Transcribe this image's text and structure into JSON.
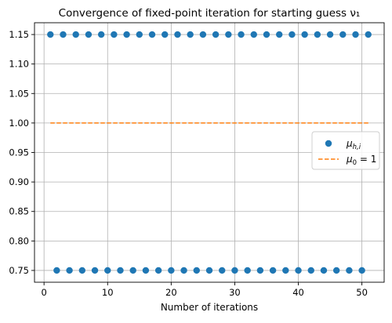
{
  "chart_data": {
    "type": "scatter",
    "title": "Convergence of fixed-point iteration for starting guess ν₁",
    "xlabel": "Number of iterations",
    "ylabel": "",
    "xlim": [
      -1.5,
      53.5
    ],
    "ylim": [
      0.73,
      1.17
    ],
    "xticks": [
      0,
      10,
      20,
      30,
      40,
      50
    ],
    "yticks": [
      0.75,
      0.8,
      0.85,
      0.9,
      0.95,
      1.0,
      1.05,
      1.1,
      1.15
    ],
    "grid": true,
    "legend_position": "center-right",
    "series": [
      {
        "name": "μh,i",
        "kind": "markers",
        "color": "#1f77b4",
        "x": [
          1,
          2,
          3,
          4,
          5,
          6,
          7,
          8,
          9,
          10,
          11,
          12,
          13,
          14,
          15,
          16,
          17,
          18,
          19,
          20,
          21,
          22,
          23,
          24,
          25,
          26,
          27,
          28,
          29,
          30,
          31,
          32,
          33,
          34,
          35,
          36,
          37,
          38,
          39,
          40,
          41,
          42,
          43,
          44,
          45,
          46,
          47,
          48,
          49,
          50,
          51
        ],
        "y": [
          1.15,
          0.75,
          1.15,
          0.75,
          1.15,
          0.75,
          1.15,
          0.75,
          1.15,
          0.75,
          1.15,
          0.75,
          1.15,
          0.75,
          1.15,
          0.75,
          1.15,
          0.75,
          1.15,
          0.75,
          1.15,
          0.75,
          1.15,
          0.75,
          1.15,
          0.75,
          1.15,
          0.75,
          1.15,
          0.75,
          1.15,
          0.75,
          1.15,
          0.75,
          1.15,
          0.75,
          1.15,
          0.75,
          1.15,
          0.75,
          1.15,
          0.75,
          1.15,
          0.75,
          1.15,
          0.75,
          1.15,
          0.75,
          1.15,
          0.75,
          1.15
        ]
      },
      {
        "name": "μ0 = 1",
        "kind": "dashed-line",
        "color": "#ff7f0e",
        "x": [
          1,
          51
        ],
        "y": [
          1.0,
          1.0
        ]
      }
    ]
  }
}
